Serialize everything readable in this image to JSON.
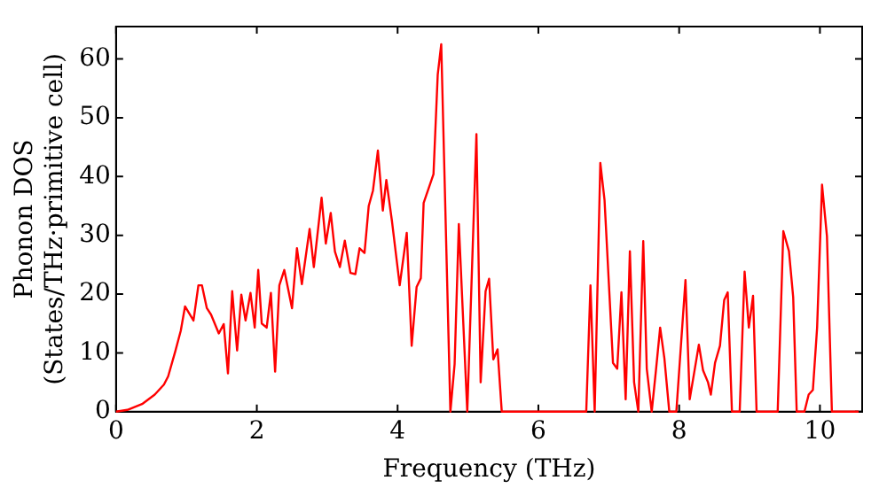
{
  "chart_data": {
    "type": "line",
    "xlabel": "Frequency (THz)",
    "ylabel": "Phonon DOS\n(States/THz·primitive cell)",
    "series": [
      {
        "color": "#ff0000",
        "x": [
          0,
          0.16,
          0.37,
          0.55,
          0.68,
          0.74,
          0.84,
          0.92,
          0.98,
          1.1,
          1.17,
          1.22,
          1.29,
          1.35,
          1.46,
          1.53,
          1.59,
          1.65,
          1.72,
          1.78,
          1.84,
          1.91,
          1.97,
          2.02,
          2.07,
          2.14,
          2.2,
          2.26,
          2.32,
          2.39,
          2.5,
          2.57,
          2.64,
          2.75,
          2.81,
          2.92,
          2.98,
          3.05,
          3.11,
          3.18,
          3.25,
          3.33,
          3.4,
          3.46,
          3.53,
          3.59,
          3.65,
          3.72,
          3.79,
          3.84,
          3.92,
          4.03,
          4.13,
          4.2,
          4.27,
          4.33,
          4.37,
          4.51,
          4.57,
          4.62,
          4.75,
          4.81,
          4.87,
          4.99,
          5.12,
          5.18,
          5.25,
          5.3,
          5.36,
          5.42,
          5.48,
          6.68,
          6.74,
          6.8,
          6.88,
          6.94,
          7.06,
          7.12,
          7.18,
          7.24,
          7.3,
          7.36,
          7.42,
          7.49,
          7.54,
          7.61,
          7.67,
          7.73,
          7.79,
          7.86,
          7.96,
          8.09,
          8.15,
          8.28,
          8.34,
          8.41,
          8.45,
          8.51,
          8.58,
          8.64,
          8.69,
          8.75,
          8.86,
          8.93,
          8.99,
          9.05,
          9.1,
          9.4,
          9.48,
          9.56,
          9.62,
          9.67,
          9.78,
          9.84,
          9.9,
          9.96,
          10.03,
          10.1,
          10.17,
          10.55
        ],
        "values": [
          0,
          0.3,
          1.3,
          2.9,
          4.6,
          6,
          10.2,
          13.8,
          17.9,
          15.5,
          21.5,
          21.5,
          17.6,
          16.5,
          13.3,
          14.9,
          6.5,
          20.5,
          10.4,
          19.9,
          15.5,
          20.2,
          14.3,
          24.1,
          15,
          14.3,
          20.2,
          6.8,
          21.5,
          24.1,
          17.6,
          27.8,
          21.7,
          31.1,
          24.6,
          36.4,
          28.6,
          33.8,
          27.2,
          24.6,
          29.1,
          23.6,
          23.4,
          27.8,
          27,
          35,
          37.6,
          44.4,
          34.2,
          39.4,
          32.4,
          21.5,
          30.4,
          11.2,
          21.2,
          22.7,
          35.5,
          40.4,
          57.3,
          62.5,
          0,
          8.1,
          31.9,
          0,
          47.2,
          5,
          20.5,
          22.6,
          8.9,
          10.6,
          0,
          0,
          21.5,
          0,
          42.3,
          36,
          8.3,
          7.3,
          20.3,
          2.1,
          27.3,
          5,
          0,
          29,
          7.3,
          0,
          7,
          14.3,
          9.1,
          0,
          0,
          22.4,
          2.1,
          11.4,
          7,
          5,
          2.9,
          8.3,
          11.2,
          19,
          20.3,
          0,
          0,
          23.8,
          14.3,
          19.7,
          0,
          0,
          30.7,
          27.3,
          19.5,
          0,
          0,
          2.9,
          3.7,
          14.3,
          38.6,
          29.8,
          0,
          0
        ]
      }
    ],
    "xlim": [
      0,
      10.6
    ],
    "ylim": [
      0,
      65.5
    ],
    "xticks": [
      0,
      2,
      4,
      6,
      8,
      10
    ],
    "yticks": [
      0,
      10,
      20,
      30,
      40,
      50,
      60
    ],
    "grid": false,
    "legend": false,
    "marker": "none",
    "line_style": "solid"
  }
}
